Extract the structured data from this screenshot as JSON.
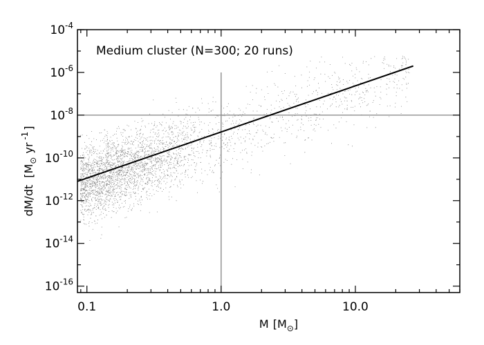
{
  "chart_data": {
    "type": "scatter",
    "title": "Medium cluster (N=300; 20 runs)",
    "xlabel": {
      "main": "M",
      "unit_open": "[M",
      "unit_sub": "⊙",
      "unit_close": "]"
    },
    "ylabel": {
      "main": "dM/dt",
      "unit_open": "[M",
      "unit_sub": "⊙",
      "unit_mid": " yr",
      "unit_exp": " -1",
      "unit_close": "]"
    },
    "x_scale": "log",
    "y_scale": "log",
    "xlim": [
      0.085,
      60
    ],
    "ylim": [
      5e-17,
      0.0001
    ],
    "x_ticks": [
      {
        "value": 0.1,
        "label": "0.1"
      },
      {
        "value": 1.0,
        "label": "1.0"
      },
      {
        "value": 10.0,
        "label": "10.0"
      }
    ],
    "y_ticks": [
      {
        "exp": -16,
        "base": "10",
        "sup": "-16"
      },
      {
        "exp": -14,
        "base": "10",
        "sup": "-14"
      },
      {
        "exp": -12,
        "base": "10",
        "sup": "-12"
      },
      {
        "exp": -10,
        "base": "10",
        "sup": "-10"
      },
      {
        "exp": -8,
        "base": "10",
        "sup": "-8"
      },
      {
        "exp": -6,
        "base": "10",
        "sup": "-6"
      },
      {
        "exp": -4,
        "base": "10",
        "sup": "-4"
      }
    ],
    "fit_line": {
      "x": [
        0.085,
        27
      ],
      "y": [
        8e-12,
        2e-06
      ],
      "color": "#000000"
    },
    "reference_lines": {
      "horizontal": {
        "y": 1e-08,
        "x_range": [
          0.085,
          60
        ],
        "color": "#808080"
      },
      "vertical": {
        "x": 1.0,
        "y_range": [
          5e-17,
          1e-06
        ],
        "color": "#808080"
      }
    },
    "scatter_points": {
      "approx_count": 6000,
      "color": "#808080"
    },
    "grid": false,
    "legend": "none"
  }
}
